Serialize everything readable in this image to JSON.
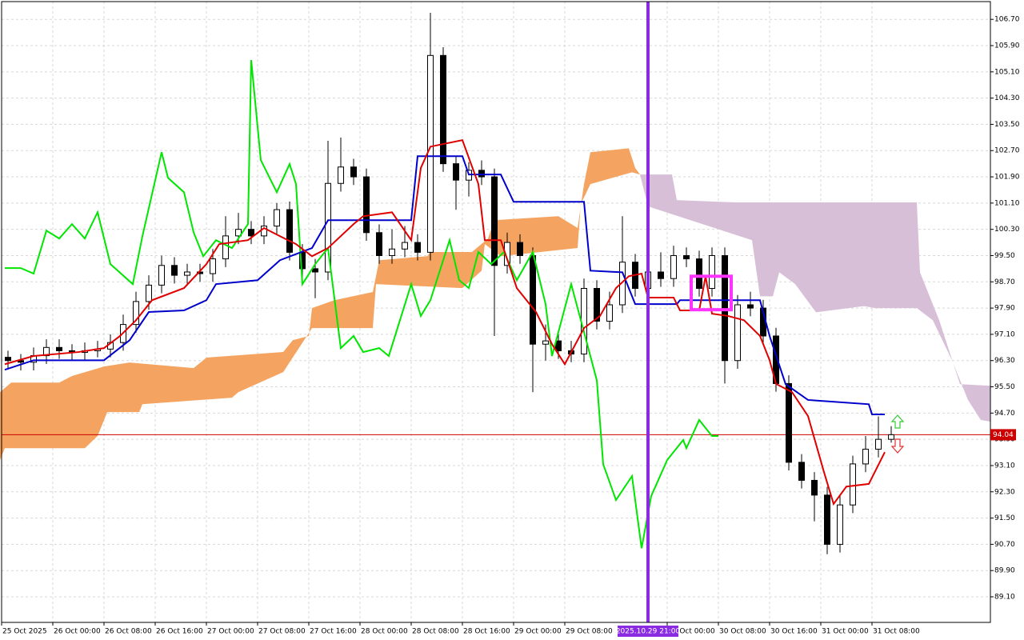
{
  "chart_data": {
    "type": "candlestick",
    "x": [
      0,
      2,
      4,
      6,
      8,
      10,
      12,
      14,
      16,
      18,
      20,
      22,
      24,
      26,
      28,
      30,
      32,
      34,
      36,
      38,
      40,
      42,
      44,
      46,
      48,
      50,
      52,
      54,
      56,
      58,
      60,
      62,
      64,
      66,
      68,
      70,
      72,
      74,
      76,
      78,
      80,
      82,
      84,
      86,
      88,
      90,
      92,
      94,
      96,
      98,
      100,
      102,
      104,
      106,
      108,
      110,
      112,
      114,
      116,
      118,
      120,
      122,
      124,
      126,
      128,
      130,
      132,
      134,
      136,
      138
    ],
    "candles": [
      [
        96.4,
        96.6,
        96.05,
        96.3
      ],
      [
        96.3,
        96.5,
        96.0,
        96.25
      ],
      [
        96.25,
        96.7,
        96.0,
        96.45
      ],
      [
        96.45,
        96.95,
        96.2,
        96.7
      ],
      [
        96.7,
        96.95,
        96.35,
        96.6
      ],
      [
        96.6,
        96.8,
        96.3,
        96.55
      ],
      [
        96.55,
        96.85,
        96.3,
        96.6
      ],
      [
        96.6,
        96.9,
        96.4,
        96.65
      ],
      [
        96.65,
        97.1,
        96.4,
        96.85
      ],
      [
        96.85,
        97.7,
        96.6,
        97.4
      ],
      [
        97.4,
        98.4,
        97.15,
        98.1
      ],
      [
        98.1,
        98.9,
        97.85,
        98.6
      ],
      [
        98.6,
        99.5,
        98.35,
        99.2
      ],
      [
        99.2,
        99.45,
        98.65,
        98.9
      ],
      [
        98.9,
        99.25,
        98.65,
        99.0
      ],
      [
        99.0,
        99.25,
        98.7,
        98.95
      ],
      [
        98.95,
        99.7,
        98.7,
        99.4
      ],
      [
        99.4,
        100.7,
        99.15,
        100.1
      ],
      [
        100.1,
        100.8,
        99.85,
        100.3
      ],
      [
        100.3,
        100.55,
        99.85,
        100.1
      ],
      [
        100.1,
        100.7,
        99.85,
        100.4
      ],
      [
        100.4,
        101.1,
        100.15,
        100.9
      ],
      [
        100.9,
        101.15,
        99.35,
        99.6
      ],
      [
        99.6,
        99.85,
        98.6,
        99.1
      ],
      [
        99.1,
        99.4,
        98.2,
        99.0
      ],
      [
        99.0,
        103.0,
        98.75,
        101.7
      ],
      [
        101.7,
        103.1,
        101.45,
        102.2
      ],
      [
        102.2,
        102.45,
        101.65,
        101.9
      ],
      [
        101.9,
        102.15,
        99.95,
        100.2
      ],
      [
        100.2,
        100.45,
        99.25,
        99.5
      ],
      [
        99.5,
        100.3,
        99.25,
        99.7
      ],
      [
        99.7,
        100.4,
        99.45,
        99.9
      ],
      [
        99.9,
        100.15,
        99.35,
        99.6
      ],
      [
        99.6,
        106.9,
        99.35,
        105.6
      ],
      [
        105.6,
        105.85,
        102.05,
        102.3
      ],
      [
        102.3,
        102.55,
        100.9,
        101.8
      ],
      [
        101.8,
        102.35,
        101.3,
        102.1
      ],
      [
        102.1,
        102.4,
        101.65,
        101.9
      ],
      [
        101.9,
        102.15,
        97.05,
        99.2
      ],
      [
        99.2,
        100.2,
        98.95,
        99.9
      ],
      [
        99.9,
        100.15,
        99.25,
        99.5
      ],
      [
        99.5,
        99.75,
        95.34,
        96.8
      ],
      [
        96.8,
        97.4,
        96.3,
        96.9
      ],
      [
        96.9,
        97.15,
        96.35,
        96.6
      ],
      [
        96.6,
        96.9,
        96.25,
        96.5
      ],
      [
        96.5,
        98.8,
        96.25,
        98.5
      ],
      [
        98.5,
        98.75,
        97.25,
        97.5
      ],
      [
        97.5,
        98.4,
        97.25,
        98.0
      ],
      [
        98.0,
        100.7,
        97.75,
        99.3
      ],
      [
        99.3,
        99.55,
        98.25,
        98.5
      ],
      [
        98.5,
        99.4,
        98.25,
        99.0
      ],
      [
        99.0,
        99.6,
        98.55,
        98.8
      ],
      [
        98.8,
        99.8,
        98.55,
        99.5
      ],
      [
        99.5,
        99.75,
        99.15,
        99.4
      ],
      [
        99.4,
        99.65,
        98.25,
        98.5
      ],
      [
        98.5,
        99.75,
        98.25,
        99.5
      ],
      [
        99.5,
        99.75,
        95.6,
        96.3
      ],
      [
        96.3,
        98.3,
        96.05,
        98.0
      ],
      [
        98.0,
        98.4,
        97.65,
        97.9
      ],
      [
        97.9,
        98.15,
        96.8,
        97.05
      ],
      [
        97.05,
        97.3,
        95.35,
        95.6
      ],
      [
        95.6,
        95.85,
        92.95,
        93.2
      ],
      [
        93.2,
        93.45,
        92.4,
        92.65
      ],
      [
        92.65,
        92.9,
        91.4,
        92.2
      ],
      [
        92.2,
        92.45,
        90.4,
        90.7
      ],
      [
        90.7,
        92.2,
        90.45,
        91.9
      ],
      [
        91.9,
        93.4,
        91.65,
        93.15
      ],
      [
        93.15,
        94.0,
        92.9,
        93.6
      ],
      [
        93.6,
        94.6,
        93.35,
        93.9
      ],
      [
        93.9,
        94.3,
        93.8,
        94.04
      ]
    ],
    "bull_color": "#ffffff",
    "bear_color": "#000000",
    "lines": [
      {
        "color": "#00e600",
        "x": [
          0.5,
          3,
          5,
          7,
          9,
          11,
          13,
          15,
          17,
          20.5,
          22,
          25,
          26,
          28.5,
          30,
          31.5,
          33.5,
          36,
          38.5,
          39,
          40.5,
          43,
          45,
          46,
          47,
          49,
          51,
          53,
          55,
          56.5,
          59,
          60.5,
          64,
          65.5,
          67,
          70,
          71.5,
          73,
          74.5,
          76.5,
          78.5,
          80.5,
          83,
          85,
          86,
          89,
          91,
          93,
          94,
          96,
          98.5,
          100,
          101.5,
          104,
          106.5,
          107,
          109,
          111,
          112
        ],
        "values": [
          99.12,
          99.12,
          98.95,
          100.26,
          100.02,
          100.46,
          100.02,
          100.82,
          99.24,
          98.63,
          100.09,
          102.65,
          101.87,
          101.43,
          100.21,
          99.48,
          99.97,
          99.73,
          100.46,
          105.46,
          102.41,
          101.43,
          102.29,
          101.68,
          98.63,
          99.24,
          99.73,
          96.68,
          97.05,
          96.56,
          96.68,
          96.44,
          98.63,
          97.66,
          98.14,
          99.97,
          98.75,
          98.51,
          99.61,
          99.24,
          99.61,
          98.75,
          99.61,
          98.02,
          96.44,
          98.63,
          97.17,
          95.7,
          93.14,
          92.05,
          92.78,
          90.58,
          92.17,
          93.27,
          93.88,
          93.63,
          94.49,
          94.0,
          94.0
        ]
      },
      {
        "color": "#0000cc",
        "x": [
          0.5,
          5,
          16,
          20,
          23,
          28.5,
          32,
          33.5,
          40,
          43.5,
          48.5,
          51,
          64,
          65,
          72,
          73,
          78,
          80,
          91,
          92,
          97,
          99,
          105.5,
          106,
          118.5,
          120,
          122.5,
          126,
          135.5,
          136,
          138
        ],
        "values": [
          96.02,
          96.31,
          96.31,
          96.92,
          97.78,
          97.83,
          98.14,
          98.63,
          98.75,
          99.36,
          99.73,
          100.58,
          100.58,
          102.53,
          102.53,
          101.97,
          101.97,
          101.14,
          101.14,
          99.04,
          98.99,
          98.02,
          98.02,
          98.14,
          98.14,
          97.05,
          95.58,
          95.1,
          94.97,
          94.66,
          94.66
        ]
      },
      {
        "color": "#e00000",
        "x": [
          0.5,
          5,
          12,
          16,
          18.5,
          21,
          23.5,
          28.5,
          32,
          34,
          38.5,
          41,
          43.5,
          46,
          48.5,
          51,
          55,
          56.5,
          61,
          64,
          65.5,
          67,
          72,
          74.5,
          75.5,
          78,
          80.5,
          83.5,
          86,
          88,
          91,
          93.5,
          96,
          98,
          100,
          101,
          105,
          106,
          109,
          110,
          111,
          113.5,
          116,
          118.5,
          120,
          121,
          123.5,
          126,
          128.5,
          130,
          132,
          135.5,
          138
        ],
        "values": [
          96.19,
          96.44,
          96.56,
          96.68,
          97.05,
          97.53,
          98.14,
          98.51,
          99.24,
          99.85,
          99.97,
          100.34,
          100.09,
          99.85,
          99.48,
          99.73,
          100.46,
          100.7,
          100.82,
          99.97,
          102.17,
          102.82,
          103.02,
          101.68,
          99.97,
          99.97,
          98.51,
          97.78,
          96.8,
          96.19,
          97.29,
          97.66,
          98.51,
          98.87,
          98.95,
          98.22,
          98.22,
          97.83,
          97.83,
          98.87,
          97.73,
          97.66,
          97.53,
          97.05,
          96.31,
          95.59,
          95.34,
          94.61,
          92.9,
          91.93,
          92.46,
          92.54,
          93.51
        ]
      }
    ],
    "cloud": [
      {
        "color": "#f4a460",
        "upper": {
          "x": [
            -0.25,
            1.5,
            9,
            11,
            16,
            20,
            30,
            32,
            44,
            45.5,
            48,
            48.5,
            52,
            58,
            59,
            66.5,
            67,
            73.5,
            76,
            77,
            87,
            90,
            91,
            92,
            98,
            99,
            99.75
          ],
          "values": [
            95.34,
            95.63,
            95.63,
            95.83,
            96.12,
            96.24,
            96.07,
            96.39,
            96.56,
            96.92,
            97.05,
            97.9,
            98.14,
            98.39,
            99.36,
            99.48,
            99.61,
            99.61,
            100.02,
            100.58,
            100.7,
            100.34,
            101.68,
            102.65,
            102.77,
            102.17,
            101.97
          ]
        },
        "lower": {
          "x": [
            -0.25,
            0.5,
            13,
            15,
            16.5,
            21.5,
            22,
            36,
            37,
            44,
            48.5,
            58,
            58.5,
            72,
            75,
            75.5,
            78,
            90,
            90.5,
            92,
            98.5,
            99.75
          ],
          "values": [
            93.27,
            93.63,
            93.63,
            94.0,
            94.73,
            94.73,
            94.97,
            95.17,
            95.34,
            95.95,
            97.29,
            97.29,
            98.63,
            98.51,
            99.04,
            99.85,
            99.48,
            99.73,
            101.07,
            101.68,
            102.04,
            101.97
          ]
        }
      },
      {
        "color": "#d8bfd8",
        "upper": {
          "x": [
            99.75,
            104.75,
            105.5,
            114.75,
            143,
            143.5,
            146.5,
            149.75,
            154.5
          ],
          "values": [
            101.97,
            101.97,
            101.19,
            101.12,
            101.12,
            98.99,
            97.53,
            95.58,
            95.53
          ]
        },
        "lower": {
          "x": [
            99.75,
            101,
            117.25,
            118.5,
            120.5,
            121.5,
            124,
            127.25,
            134.75,
            136.5,
            143,
            145.5,
            148.5,
            151,
            153,
            154.5
          ],
          "values": [
            101.97,
            101.0,
            99.97,
            98.26,
            98.26,
            98.99,
            98.63,
            97.77,
            97.96,
            97.9,
            97.9,
            97.53,
            96.31,
            95.1,
            94.49,
            94.44
          ]
        }
      }
    ],
    "xlim": [
      -0.25,
      154.5
    ],
    "ylim": [
      88.32,
      107.29
    ],
    "yticks": [
      {
        "value": 89.1,
        "label": "89.10"
      },
      {
        "value": 89.9,
        "label": "89.90"
      },
      {
        "value": 90.7,
        "label": "90.70"
      },
      {
        "value": 91.5,
        "label": "91.50"
      },
      {
        "value": 92.3,
        "label": "92.30"
      },
      {
        "value": 93.1,
        "label": "93.10"
      },
      {
        "value": 93.9,
        "label": "93.90"
      },
      {
        "value": 94.7,
        "label": "94.70"
      },
      {
        "value": 95.5,
        "label": "95.50"
      },
      {
        "value": 96.3,
        "label": "96.30"
      },
      {
        "value": 97.1,
        "label": "97.10"
      },
      {
        "value": 97.9,
        "label": "97.90"
      },
      {
        "value": 98.7,
        "label": "98.70"
      },
      {
        "value": 99.5,
        "label": "99.50"
      },
      {
        "value": 100.3,
        "label": "100.30"
      },
      {
        "value": 101.1,
        "label": "101.10"
      },
      {
        "value": 101.9,
        "label": "101.90"
      },
      {
        "value": 102.7,
        "label": "102.70"
      },
      {
        "value": 103.5,
        "label": "103.50"
      },
      {
        "value": 104.3,
        "label": "104.30"
      },
      {
        "value": 105.1,
        "label": "105.10"
      },
      {
        "value": 105.9,
        "label": "105.90"
      },
      {
        "value": 106.7,
        "label": "106.70"
      }
    ],
    "xticks": [
      {
        "value": 0,
        "label": "25 Oct 2025"
      },
      {
        "value": 8,
        "label": "26 Oct 00:00"
      },
      {
        "value": 16,
        "label": "26 Oct 08:00"
      },
      {
        "value": 24,
        "label": "26 Oct 16:00"
      },
      {
        "value": 32,
        "label": "27 Oct 00:00"
      },
      {
        "value": 40,
        "label": "27 Oct 08:00"
      },
      {
        "value": 48,
        "label": "27 Oct 16:00"
      },
      {
        "value": 56,
        "label": "28 Oct 00:00"
      },
      {
        "value": 64,
        "label": "28 Oct 08:00"
      },
      {
        "value": 72,
        "label": "28 Oct 16:00"
      },
      {
        "value": 80,
        "label": "29 Oct 00:00"
      },
      {
        "value": 88,
        "label": "29 Oct 08:00"
      },
      {
        "value": 104,
        "label": "30 Oct 00:00"
      },
      {
        "value": 112,
        "label": "30 Oct 08:00"
      },
      {
        "value": 120,
        "label": "30 Oct 16:00"
      },
      {
        "value": 128,
        "label": "31 Oct 00:00"
      },
      {
        "value": 136,
        "label": "31 Oct 08:00"
      }
    ],
    "grid": true,
    "current_price": {
      "value": 94.04,
      "label": "94.04",
      "color": "#cc0000"
    },
    "marker_line": {
      "x": 101,
      "label": "2025.10.29 21:00",
      "color": "#8a2be2"
    },
    "rectangle": {
      "x": [
        107.75,
        114
      ],
      "y": [
        97.85,
        98.87
      ],
      "color": "#ff33ff"
    }
  }
}
